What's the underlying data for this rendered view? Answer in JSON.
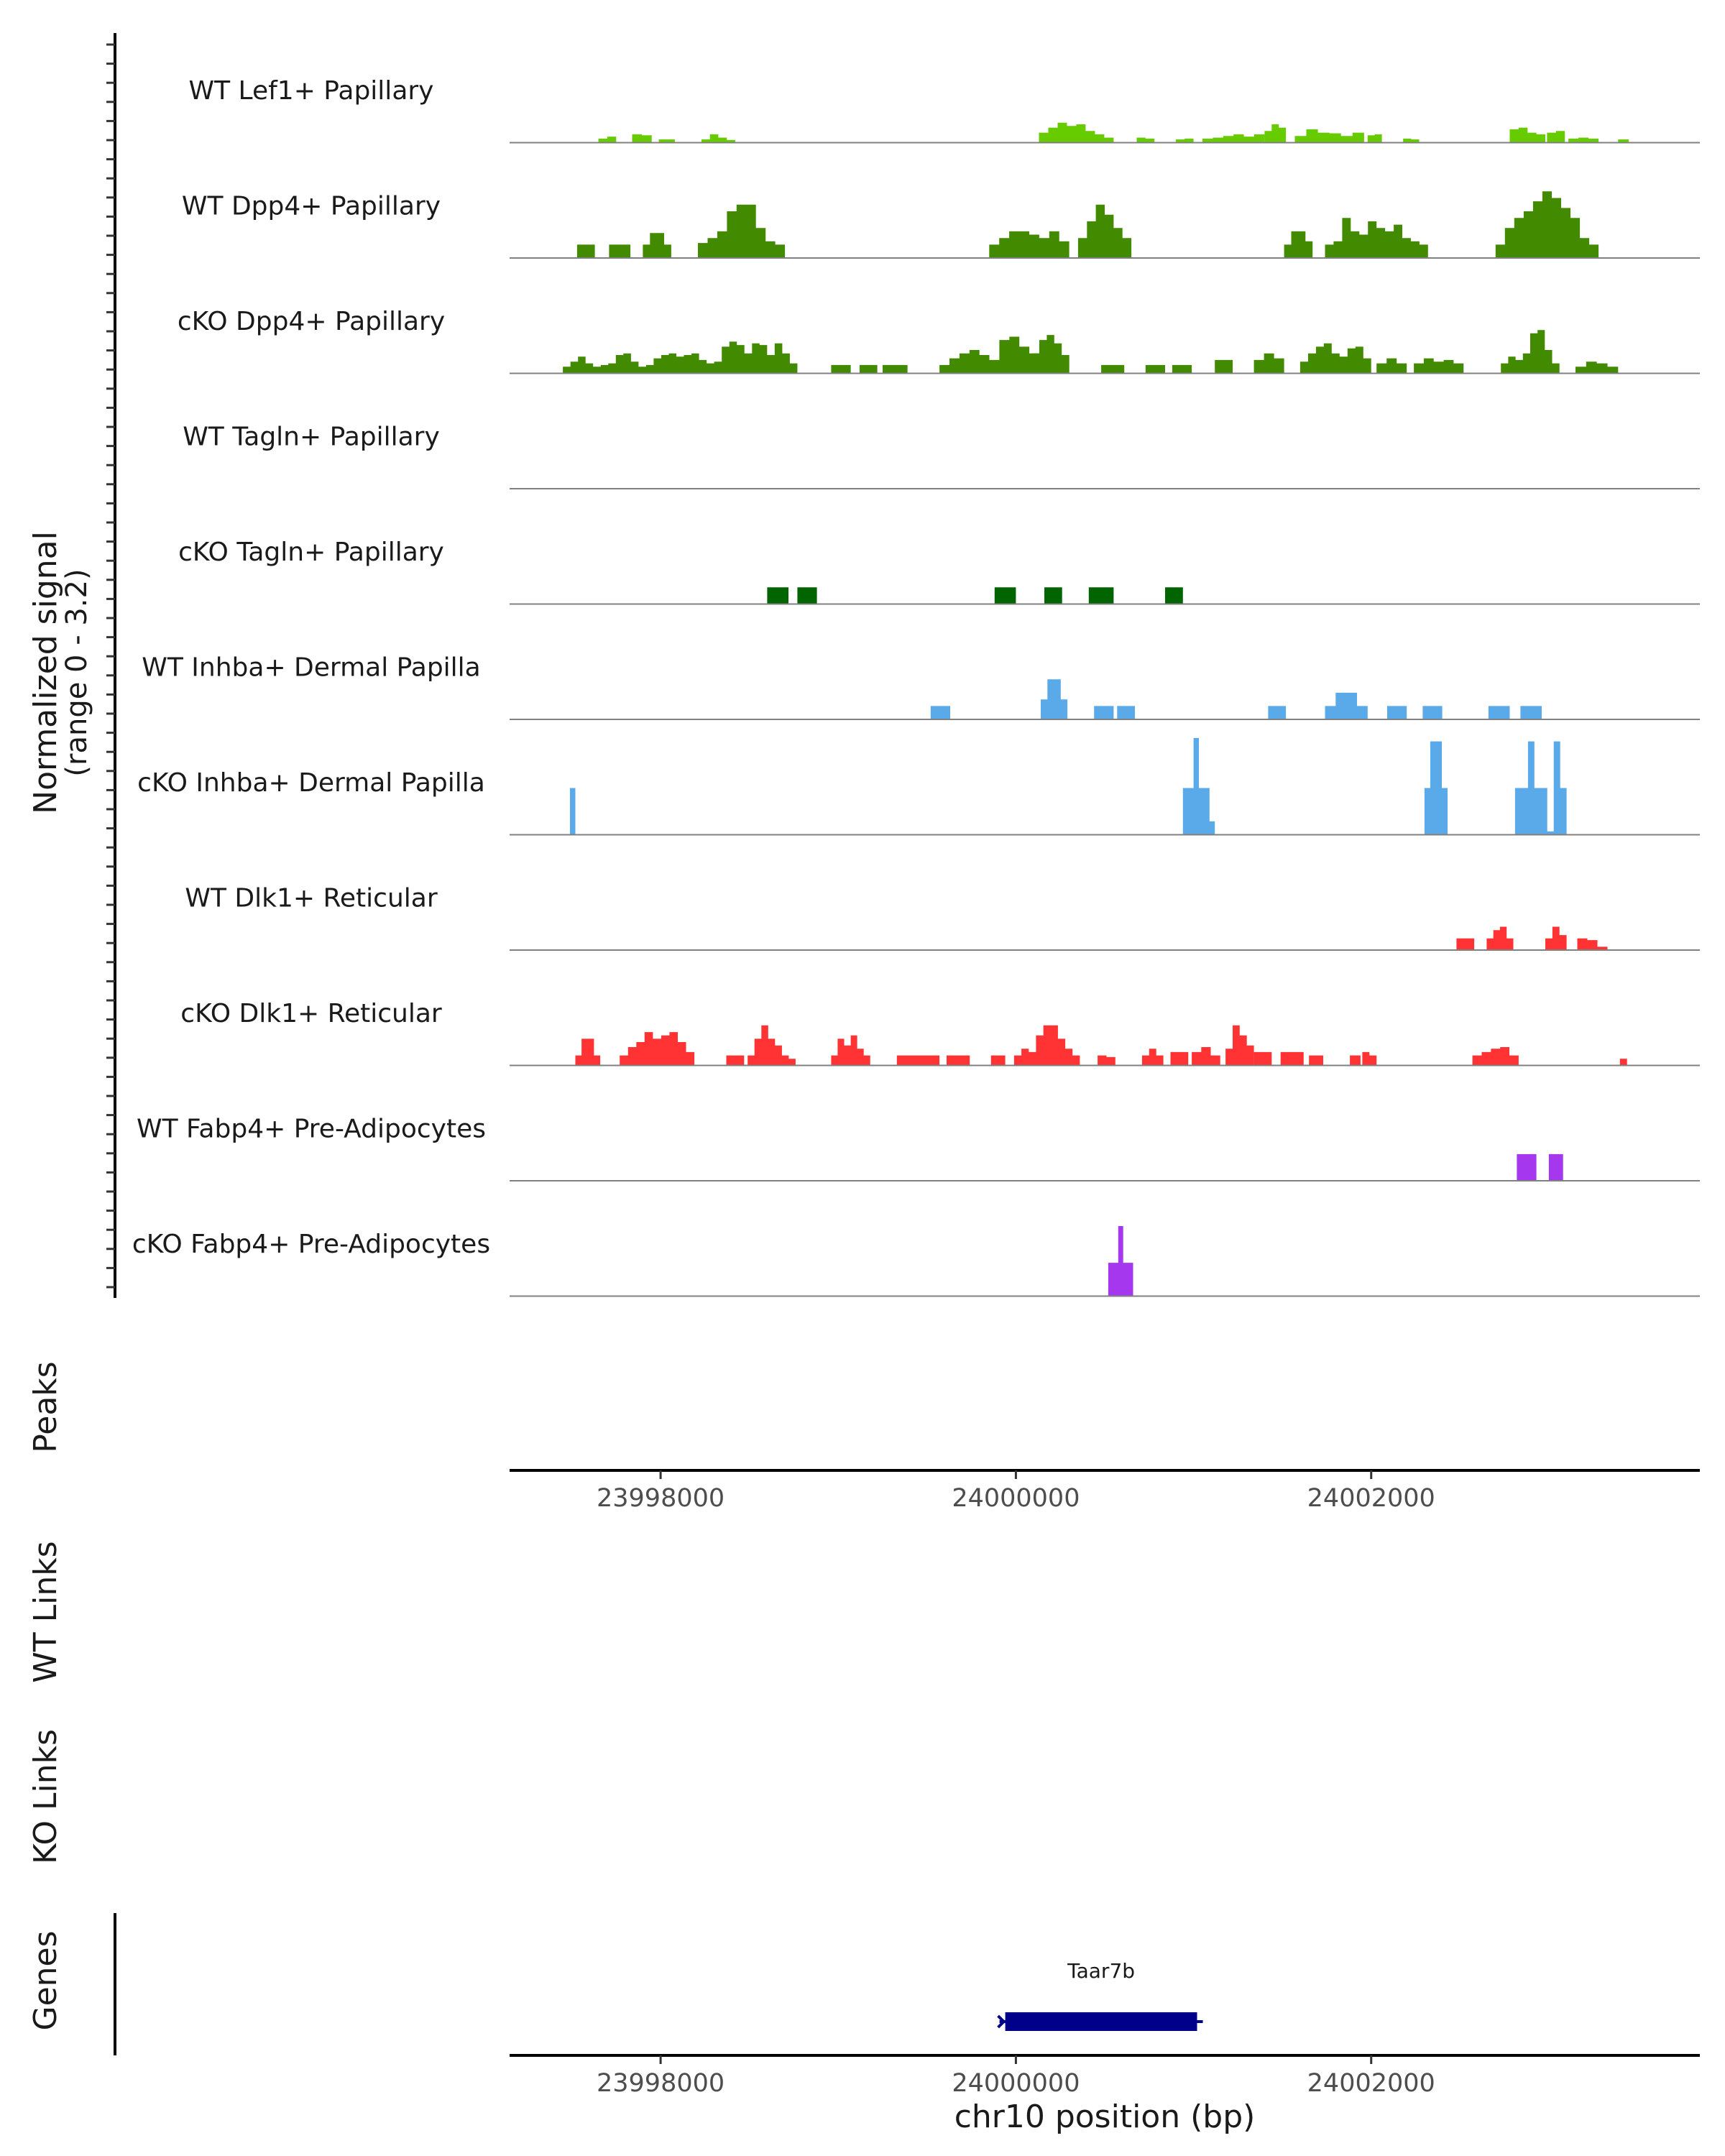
{
  "chart_data": {
    "type": "area",
    "title": "",
    "xlabel": "chr10 position (bp)",
    "ylabel": "Normalized signal",
    "ylabel_range": "(range 0 - 3.2)",
    "ylim": [
      0,
      3.2
    ],
    "xlim": [
      23997150,
      24003850
    ],
    "x_ticks": [
      23998000,
      24000000,
      24002000
    ],
    "x_tick_labels": [
      "23998000",
      "24000000",
      "24002000"
    ],
    "peaks_label": "Peaks",
    "wt_links_label": "WT Links",
    "ko_links_label": "KO Links",
    "genes_label": "Genes",
    "gene": {
      "name": "Taar7b",
      "start": 23999940,
      "end": 24001020,
      "strand": "-",
      "color": "#00008b"
    },
    "colors": {
      "Lef1": "#66cc00",
      "Dpp4": "#428a00",
      "Tagln": "#006400",
      "Inhba": "#5aa9e8",
      "Dlk1": "#ff3333",
      "Fabp4": "#a538ee"
    },
    "series": [
      {
        "name": "WT Lef1+ Papillary",
        "color": "#66cc00",
        "regions": [
          [
            23997650,
            23997750,
            [
              0.12,
              0.18
            ]
          ],
          [
            23997840,
            23997950,
            [
              0.25,
              0.22
            ]
          ],
          [
            23997990,
            23998080,
            [
              0.1,
              0.1
            ]
          ],
          [
            23998230,
            23998420,
            [
              0.1,
              0.25,
              0.15,
              0.08
            ]
          ],
          [
            24000130,
            24000550,
            [
              0.3,
              0.45,
              0.6,
              0.5,
              0.55,
              0.35,
              0.25,
              0.15
            ]
          ],
          [
            24000680,
            24000780,
            [
              0.15,
              0.12
            ]
          ],
          [
            24000900,
            24001000,
            [
              0.1,
              0.12
            ]
          ],
          [
            24001050,
            24001400,
            [
              0.12,
              0.15,
              0.2,
              0.25,
              0.18,
              0.25
            ]
          ],
          [
            24001400,
            24001520,
            [
              0.35,
              0.55,
              0.45
            ]
          ],
          [
            24001570,
            24001960,
            [
              0.2,
              0.4,
              0.3,
              0.28,
              0.2,
              0.3
            ]
          ],
          [
            24001980,
            24002060,
            [
              0.22,
              0.25
            ]
          ],
          [
            24002180,
            24002270,
            [
              0.12,
              0.1
            ]
          ],
          [
            24002780,
            24002980,
            [
              0.4,
              0.45,
              0.3,
              0.25
            ]
          ],
          [
            24002990,
            24003090,
            [
              0.3,
              0.35
            ]
          ],
          [
            24003110,
            24003280,
            [
              0.12,
              0.15,
              0.12
            ]
          ],
          [
            24003390,
            24003450,
            [
              0.1
            ]
          ]
        ]
      },
      {
        "name": "WT Dpp4+ Papillary",
        "color": "#428a00",
        "regions": [
          [
            23997530,
            23997630,
            [
              0.4,
              0.4
            ]
          ],
          [
            23997710,
            23997830,
            [
              0.4,
              0.4
            ]
          ],
          [
            23997900,
            23998060,
            [
              0.4,
              0.75,
              0.75,
              0.4
            ]
          ],
          [
            23998210,
            23998700,
            [
              0.45,
              0.6,
              0.8,
              1.4,
              1.6,
              1.6,
              0.9,
              0.5,
              0.4
            ]
          ],
          [
            23999850,
            24000300,
            [
              0.4,
              0.6,
              0.8,
              0.8,
              0.7,
              0.6,
              0.8,
              0.5
            ]
          ],
          [
            24000350,
            24000650,
            [
              0.6,
              1.1,
              1.6,
              1.3,
              0.9,
              0.6
            ]
          ],
          [
            24001510,
            24001670,
            [
              0.4,
              0.8,
              0.8,
              0.5
            ]
          ],
          [
            24001740,
            24002320,
            [
              0.4,
              0.5,
              1.2,
              0.8,
              0.7,
              1.1,
              0.9,
              0.8,
              1.0,
              0.6,
              0.5,
              0.4
            ]
          ],
          [
            24002700,
            24003280,
            [
              0.4,
              0.9,
              1.2,
              1.4,
              1.7,
              2.0,
              1.8,
              1.5,
              1.2,
              0.6,
              0.4
            ]
          ]
        ]
      },
      {
        "name": "cKO Dpp4+ Papillary",
        "color": "#428a00",
        "regions": [
          [
            23997450,
            23998770,
            [
              0.2,
              0.35,
              0.5,
              0.3,
              0.2,
              0.25,
              0.3,
              0.55,
              0.6,
              0.35,
              0.2,
              0.25,
              0.45,
              0.55,
              0.6,
              0.5,
              0.55,
              0.6,
              0.4,
              0.3,
              0.35,
              0.8,
              0.95,
              0.85,
              0.6,
              0.9,
              0.85,
              0.55,
              0.9,
              0.6,
              0.3
            ]
          ],
          [
            23998960,
            23999070,
            [
              0.25,
              0.25
            ]
          ],
          [
            23999120,
            23999220,
            [
              0.25,
              0.25
            ]
          ],
          [
            23999250,
            23999390,
            [
              0.25,
              0.25
            ]
          ],
          [
            23999570,
            24000300,
            [
              0.25,
              0.45,
              0.6,
              0.7,
              0.55,
              0.4,
              1.0,
              1.1,
              0.8,
              0.6,
              0.9,
              0.7,
              0.55
            ]
          ],
          [
            24000090,
            24000300,
            [
              0.6,
              1.0,
              1.15,
              0.9,
              0.55
            ]
          ],
          [
            24000480,
            24000610,
            [
              0.25,
              0.25
            ]
          ],
          [
            24000730,
            24000840,
            [
              0.25,
              0.25
            ]
          ],
          [
            24000880,
            24000990,
            [
              0.25,
              0.25
            ]
          ],
          [
            24001120,
            24001220,
            [
              0.4,
              0.4
            ]
          ],
          [
            24001340,
            24001510,
            [
              0.4,
              0.6,
              0.45
            ]
          ],
          [
            24001600,
            24002000,
            [
              0.35,
              0.6,
              0.8,
              0.9,
              0.6,
              0.5,
              0.75,
              0.8,
              0.45
            ]
          ],
          [
            24002030,
            24002200,
            [
              0.3,
              0.45,
              0.3
            ]
          ],
          [
            24002240,
            24002520,
            [
              0.3,
              0.45,
              0.35,
              0.4,
              0.3
            ]
          ],
          [
            24002730,
            24003060,
            [
              0.3,
              0.5,
              0.4,
              0.6,
              1.2,
              1.3,
              0.7,
              0.3
            ]
          ],
          [
            24003150,
            24003390,
            [
              0.2,
              0.35,
              0.3,
              0.2
            ]
          ]
        ]
      },
      {
        "name": "WT Tagln+ Papillary",
        "color": "#006400",
        "regions": []
      },
      {
        "name": "cKO Tagln+ Papillary",
        "color": "#006400",
        "regions": [
          [
            23998600,
            23998720,
            [
              0.5,
              0.5
            ]
          ],
          [
            23998770,
            23998880,
            [
              0.5,
              0.5
            ]
          ],
          [
            23999880,
            24000000,
            [
              0.5,
              0.5
            ]
          ],
          [
            24000160,
            24000260,
            [
              0.5,
              0.5
            ]
          ],
          [
            24000410,
            24000550,
            [
              0.5,
              0.5
            ]
          ],
          [
            24000840,
            24000940,
            [
              0.5,
              0.5
            ]
          ]
        ]
      },
      {
        "name": "WT Inhba+ Dermal Papilla",
        "color": "#5aa9e8",
        "regions": [
          [
            23999520,
            23999630,
            [
              0.4,
              0.4
            ]
          ],
          [
            24000140,
            24000290,
            [
              0.6,
              1.2,
              1.2,
              0.6
            ]
          ],
          [
            24000440,
            24000550,
            [
              0.4,
              0.4
            ]
          ],
          [
            24000570,
            24000670,
            [
              0.4,
              0.4
            ]
          ],
          [
            24001420,
            24001520,
            [
              0.4,
              0.4
            ]
          ],
          [
            24001740,
            24001980,
            [
              0.4,
              0.8,
              0.8,
              0.4
            ]
          ],
          [
            24002090,
            24002200,
            [
              0.4,
              0.4
            ]
          ],
          [
            24002290,
            24002400,
            [
              0.4,
              0.4
            ]
          ],
          [
            24002660,
            24002780,
            [
              0.4,
              0.4
            ]
          ],
          [
            24002840,
            24002960,
            [
              0.4,
              0.4
            ]
          ]
        ]
      },
      {
        "name": "cKO Inhba+ Dermal Papilla",
        "color": "#5aa9e8",
        "regions": [
          [
            23997490,
            23997520,
            [
              1.4,
              1.4
            ]
          ],
          [
            24000940,
            24001120,
            [
              1.4,
              1.4,
              2.9,
              1.4,
              1.4,
              0.4
            ]
          ],
          [
            24002300,
            24002430,
            [
              1.4,
              2.8,
              2.8,
              1.4
            ]
          ],
          [
            24002810,
            24003100,
            [
              1.4,
              1.4,
              2.8,
              1.4,
              1.4,
              0.1,
              2.8,
              1.4
            ]
          ]
        ]
      },
      {
        "name": "WT Dlk1+ Reticular",
        "color": "#ff3333",
        "regions": [
          [
            24002480,
            24002580,
            [
              0.35,
              0.35
            ]
          ],
          [
            24002650,
            24002800,
            [
              0.35,
              0.6,
              0.7,
              0.35
            ]
          ],
          [
            24002980,
            24003100,
            [
              0.35,
              0.7,
              0.45
            ]
          ],
          [
            24003160,
            24003330,
            [
              0.35,
              0.3,
              0.1
            ]
          ]
        ]
      },
      {
        "name": "cKO Dlk1+ Reticular",
        "color": "#ff3333",
        "regions": [
          [
            23997520,
            23997660,
            [
              0.3,
              0.8,
              0.8,
              0.3
            ]
          ],
          [
            23997770,
            23998190,
            [
              0.3,
              0.55,
              0.7,
              1.0,
              0.8,
              0.9,
              1.0,
              0.7,
              0.4
            ]
          ],
          [
            23998370,
            23998470,
            [
              0.3,
              0.3
            ]
          ],
          [
            23998490,
            23998760,
            [
              0.3,
              0.8,
              1.2,
              0.8,
              0.6,
              0.3,
              0.2
            ]
          ],
          [
            23998960,
            23999180,
            [
              0.3,
              0.8,
              0.6,
              0.9,
              0.5,
              0.3
            ]
          ],
          [
            23999330,
            23999570,
            [
              0.3,
              0.3,
              0.3
            ]
          ],
          [
            23999610,
            23999740,
            [
              0.3,
              0.3
            ]
          ],
          [
            23999860,
            23999940,
            [
              0.3,
              0.3
            ]
          ],
          [
            23999990,
            24000360,
            [
              0.3,
              0.5,
              0.4,
              0.9,
              1.2,
              1.2,
              0.8,
              0.5,
              0.3
            ]
          ],
          [
            24000460,
            24000560,
            [
              0.3,
              0.25
            ]
          ],
          [
            24000710,
            24000830,
            [
              0.3,
              0.5,
              0.3
            ]
          ],
          [
            24000870,
            24000970,
            [
              0.4,
              0.4
            ]
          ],
          [
            24000990,
            24001150,
            [
              0.4,
              0.55,
              0.3
            ]
          ],
          [
            24001180,
            24001340,
            [
              0.5,
              1.2,
              0.9,
              0.6
            ]
          ],
          [
            24001340,
            24001440,
            [
              0.4,
              0.4
            ]
          ],
          [
            24001490,
            24001620,
            [
              0.4,
              0.4
            ]
          ],
          [
            24001650,
            24001730,
            [
              0.3,
              0.3
            ]
          ],
          [
            24001880,
            24001940,
            [
              0.3
            ]
          ],
          [
            24001950,
            24002030,
            [
              0.4,
              0.3
            ]
          ],
          [
            24002570,
            24002830,
            [
              0.3,
              0.4,
              0.5,
              0.55,
              0.3
            ]
          ],
          [
            24003400,
            24003440,
            [
              0.2
            ]
          ]
        ]
      },
      {
        "name": "WT Fabp4+ Pre-Adipocytes",
        "color": "#a538ee",
        "regions": [
          [
            24002820,
            24002930,
            [
              0.8,
              0.8
            ]
          ],
          [
            24003000,
            24003080,
            [
              0.8,
              0.8
            ]
          ]
        ]
      },
      {
        "name": "cKO Fabp4+ Pre-Adipocytes",
        "color": "#a538ee",
        "regions": [
          [
            24000520,
            24000660,
            [
              1.0,
              1.0,
              2.1,
              1.0,
              1.0
            ]
          ]
        ]
      }
    ]
  }
}
